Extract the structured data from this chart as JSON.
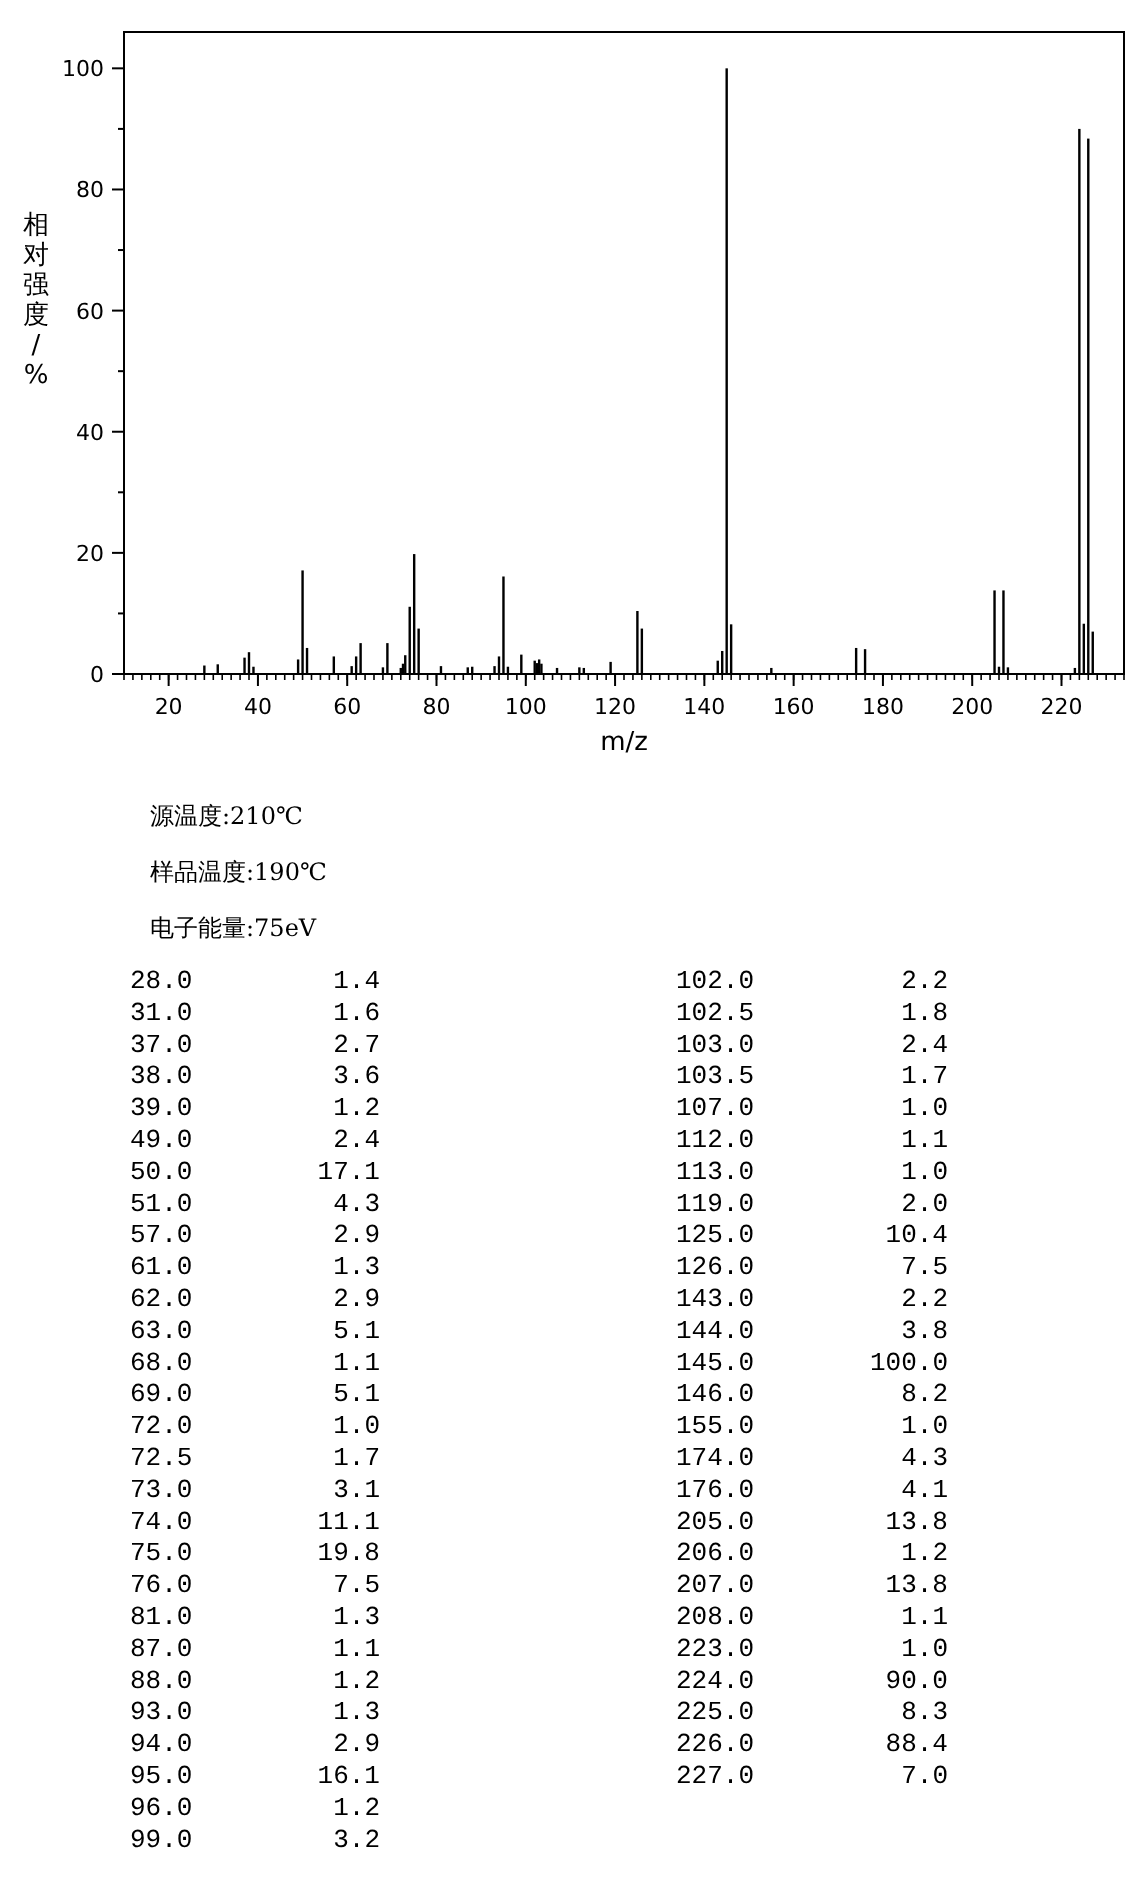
{
  "chart_data": [
    {
      "type": "bar",
      "xlabel": "m/z",
      "ylabel": "相对强度/%",
      "color": "#000000",
      "x": [
        28.0,
        31.0,
        37.0,
        38.0,
        39.0,
        49.0,
        50.0,
        51.0,
        57.0,
        61.0,
        62.0,
        63.0,
        68.0,
        69.0,
        72.0,
        72.5,
        73.0,
        74.0,
        75.0,
        76.0,
        81.0,
        87.0,
        88.0,
        93.0,
        94.0,
        95.0,
        96.0,
        99.0,
        102.0,
        102.5,
        103.0,
        103.5,
        107.0,
        112.0,
        113.0,
        119.0,
        125.0,
        126.0,
        143.0,
        144.0,
        145.0,
        146.0,
        155.0,
        174.0,
        176.0,
        205.0,
        206.0,
        207.0,
        208.0,
        223.0,
        224.0,
        225.0,
        226.0,
        227.0
      ],
      "values": [
        1.4,
        1.6,
        2.7,
        3.6,
        1.2,
        2.4,
        17.1,
        4.3,
        2.9,
        1.3,
        2.9,
        5.1,
        1.1,
        5.1,
        1.0,
        1.7,
        3.1,
        11.1,
        19.8,
        7.5,
        1.3,
        1.1,
        1.2,
        1.3,
        2.9,
        16.1,
        1.2,
        3.2,
        2.2,
        1.8,
        2.4,
        1.7,
        1.0,
        1.1,
        1.0,
        2.0,
        10.4,
        7.5,
        2.2,
        3.8,
        100.0,
        8.2,
        1.0,
        4.3,
        4.1,
        13.8,
        1.2,
        13.8,
        1.1,
        1.0,
        90.0,
        8.3,
        88.4,
        7.0
      ],
      "xlim": [
        10,
        234
      ],
      "xticks": [
        20,
        40,
        60,
        80,
        100,
        120,
        140,
        160,
        180,
        200,
        220
      ],
      "ylim": [
        0,
        106
      ],
      "yticks": [
        0,
        20,
        40,
        60,
        80,
        100
      ],
      "annotations": [
        "源温度:210℃",
        "样品温度:190℃",
        "电子能量:75eV"
      ]
    },
    {
      "type": "other",
      "categories": [
        "28.0",
        "31.0",
        "37.0",
        "38.0",
        "39.0",
        "49.0",
        "50.0",
        "51.0",
        "57.0",
        "61.0",
        "62.0",
        "63.0",
        "68.0",
        "69.0",
        "72.0",
        "72.5",
        "73.0",
        "74.0",
        "75.0",
        "76.0",
        "81.0",
        "87.0",
        "88.0",
        "93.0",
        "94.0",
        "95.0",
        "96.0",
        "99.0",
        "102.0",
        "102.5",
        "103.0",
        "103.5",
        "107.0",
        "112.0",
        "113.0",
        "119.0",
        "125.0",
        "126.0",
        "143.0",
        "144.0",
        "145.0",
        "146.0",
        "155.0",
        "174.0",
        "176.0",
        "205.0",
        "206.0",
        "207.0",
        "208.0",
        "223.0",
        "224.0",
        "225.0",
        "226.0",
        "227.0"
      ],
      "value_labels": [
        "1.4",
        "1.6",
        "2.7",
        "3.6",
        "1.2",
        "2.4",
        "17.1",
        "4.3",
        "2.9",
        "1.3",
        "2.9",
        "5.1",
        "1.1",
        "5.1",
        "1.0",
        "1.7",
        "3.1",
        "11.1",
        "19.8",
        "7.5",
        "1.3",
        "1.1",
        "1.2",
        "1.3",
        "2.9",
        "16.1",
        "1.2",
        "3.2",
        "2.2",
        "1.8",
        "2.4",
        "1.7",
        "1.0",
        "1.1",
        "1.0",
        "2.0",
        "10.4",
        "7.5",
        "2.2",
        "3.8",
        "100.0",
        "8.2",
        "1.0",
        "4.3",
        "4.1",
        "13.8",
        "1.2",
        "13.8",
        "1.1",
        "1.0",
        "90.0",
        "8.3",
        "88.4",
        "7.0"
      ]
    }
  ]
}
